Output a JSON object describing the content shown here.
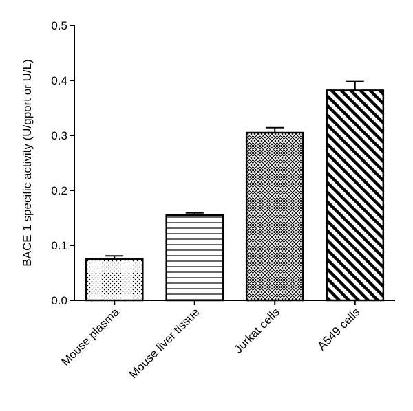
{
  "chart_data": {
    "type": "bar",
    "title": "",
    "xlabel": "",
    "ylabel": "BACE 1 specific activity (U/gport or U/L)",
    "ylim": [
      0,
      0.5
    ],
    "yticks": [
      0.0,
      0.1,
      0.2,
      0.3,
      0.4,
      0.5
    ],
    "ytick_labels": [
      "0.0",
      "0.1",
      "0.2",
      "0.3",
      "0.4",
      "0.5"
    ],
    "categories": [
      "Mouse plasma",
      "Mouse liver tissue",
      "Jurkat cells",
      "A549 cells"
    ],
    "values": [
      0.075,
      0.155,
      0.305,
      0.382
    ],
    "errors": [
      0.006,
      0.004,
      0.009,
      0.016
    ],
    "patterns": [
      "dots",
      "horizontal-lines",
      "crosshatch",
      "diagonal-stripes"
    ],
    "colors": {
      "axis": "#000000",
      "bar_fill": "#ffffff",
      "pattern": "#000000"
    }
  }
}
